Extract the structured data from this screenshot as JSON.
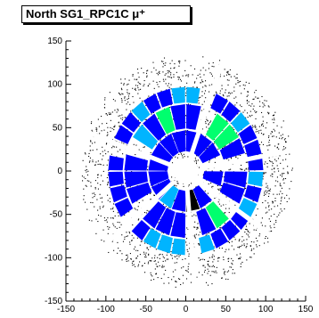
{
  "chart_data": {
    "type": "heatmap",
    "title": "North SG1_RPC1C μ⁺",
    "xlabel": "",
    "ylabel": "",
    "xlim": [
      -150,
      150
    ],
    "ylim": [
      -150,
      150
    ],
    "xticks": [
      "-150",
      "-100",
      "-50",
      "0",
      "50",
      "100",
      "150"
    ],
    "yticks": [
      "150",
      "100",
      "50",
      "0",
      "-50",
      "-100",
      "-150"
    ],
    "grid": false,
    "legend": "none",
    "geometry": {
      "inner_radius": 22,
      "outer_radius": 118,
      "sectors": 8,
      "gap_angles_deg": [
        70,
        10,
        325,
        275,
        220,
        160
      ]
    },
    "colors": {
      "background": "#ffffff",
      "scatter": "#000000",
      "low": "#0000ff",
      "mid": "#00b4ff",
      "high": "#00ff6e",
      "dark": "#000000"
    }
  }
}
